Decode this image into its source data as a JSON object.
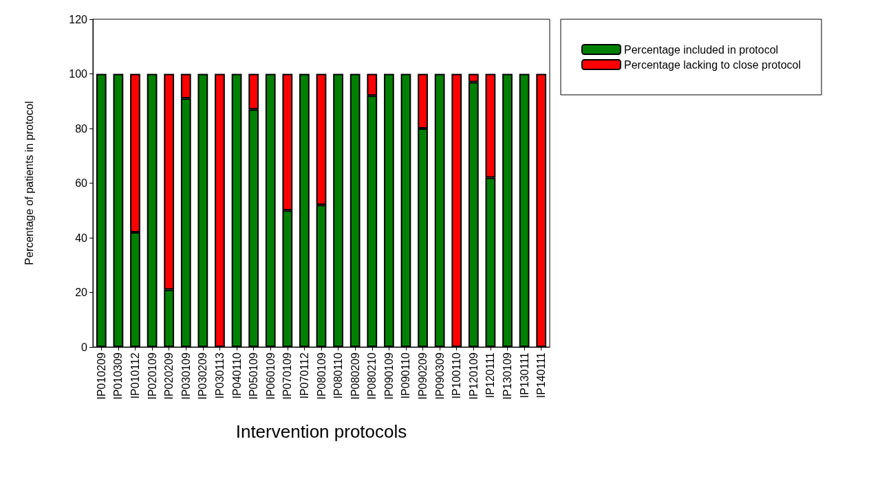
{
  "chart_data": {
    "type": "bar",
    "stacked": true,
    "xlabel": "Intervention protocols",
    "ylabel": "Percentage of patients in protocol",
    "categories": [
      "IP010209",
      "IP010309",
      "IP010112",
      "IP020109",
      "IP020209",
      "IP030109",
      "IP030209",
      "IP030113",
      "IP040110",
      "IP050109",
      "IP060109",
      "IP070109",
      "IP070112",
      "IP080109",
      "IP080110",
      "IP080209",
      "IP080210",
      "IP090109",
      "IP090110",
      "IP090209",
      "IP090309",
      "IP100110",
      "IP120109",
      "IP120111",
      "IP130109",
      "IP130111",
      "IP140111"
    ],
    "series": [
      {
        "name": "Percentage included in protocol",
        "color": "#008000",
        "values": [
          100,
          100,
          42,
          100,
          21,
          91,
          100,
          0,
          100,
          87,
          100,
          50,
          100,
          52,
          100,
          100,
          92,
          100,
          100,
          80,
          100,
          0,
          97,
          62,
          100,
          100,
          0
        ]
      },
      {
        "name": "Percentage lacking to close protocol",
        "color": "#ff0000",
        "values": [
          0,
          0,
          58,
          0,
          79,
          9,
          0,
          100,
          0,
          13,
          0,
          50,
          0,
          48,
          0,
          0,
          8,
          0,
          0,
          20,
          0,
          100,
          3,
          38,
          0,
          0,
          100
        ]
      }
    ],
    "ylim": [
      0,
      120
    ],
    "yticks": [
      0,
      20,
      40,
      60,
      80,
      100,
      120
    ],
    "grid": false,
    "legend": "top right"
  }
}
